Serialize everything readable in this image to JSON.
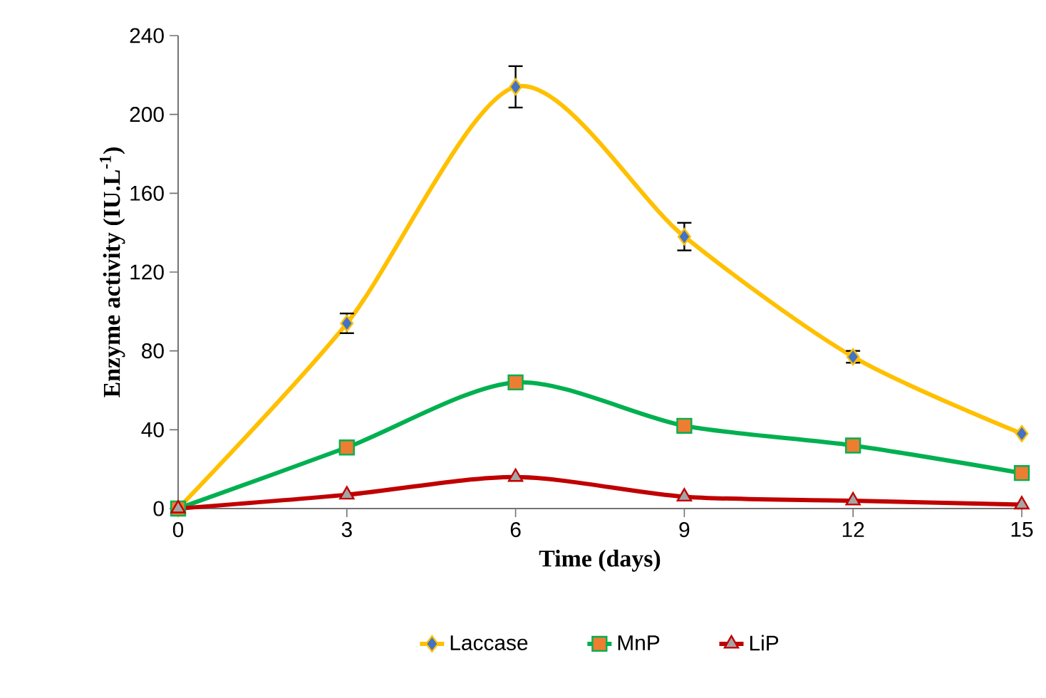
{
  "chart_data": {
    "type": "line",
    "xlabel": "Time (days)",
    "ylabel": "Enzyme activity (IU.L$^{-1}$)",
    "x": [
      0,
      3,
      6,
      9,
      12,
      15
    ],
    "xlim": [
      0,
      15
    ],
    "xticks": [
      0,
      3,
      6,
      9,
      12,
      15
    ],
    "ylim": [
      0,
      240
    ],
    "yticks": [
      0,
      40,
      80,
      120,
      160,
      200,
      240
    ],
    "grid": false,
    "legend": "bottom",
    "series": [
      {
        "name": "Laccase",
        "color": "#ffc000",
        "marker": "diamond",
        "colors": [
          "#4472c4",
          "#4472c4",
          "#4472c4",
          "#4472c4",
          "#4472c4",
          "#4472c4"
        ],
        "values": [
          0,
          94,
          214,
          138,
          77,
          38
        ],
        "errors": [
          null,
          5,
          10.5,
          7,
          3,
          null
        ]
      },
      {
        "name": "MnP",
        "color": "#00b050",
        "marker": "square",
        "colors": [
          "#ed7d31",
          "#ed7d31",
          "#ed7d31",
          "#ed7d31",
          "#ed7d31",
          "#ed7d31"
        ],
        "values": [
          0,
          31,
          64,
          42,
          32,
          18
        ]
      },
      {
        "name": "LiP",
        "color": "#c00000",
        "marker": "triangle",
        "colors": [
          "#a5a5a5",
          "#a5a5a5",
          "#a5a5a5",
          "#a5a5a5",
          "#a5a5a5",
          "#a5a5a5"
        ],
        "values": [
          0,
          7,
          16,
          6,
          4,
          2
        ]
      }
    ]
  }
}
